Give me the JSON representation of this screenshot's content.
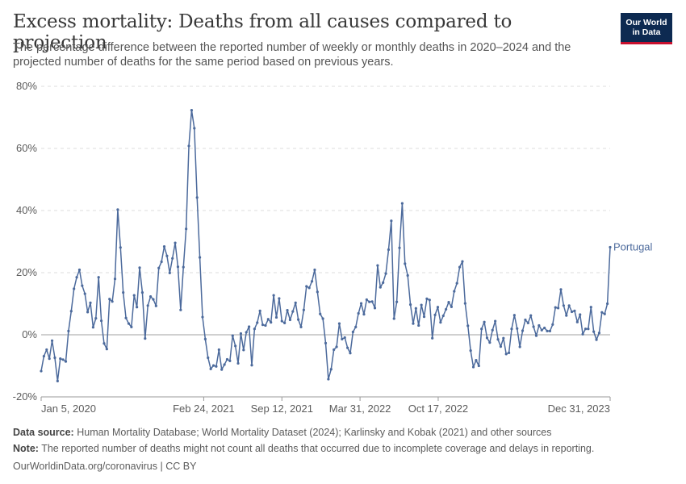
{
  "header": {
    "title": "Excess mortality: Deaths from all causes compared to projection",
    "subtitle": "The percentage difference between the reported number of weekly or monthly deaths in 2020–2024 and the projected number of deaths for the same period based on previous years.",
    "logo_line1": "Our World",
    "logo_line2": "in Data"
  },
  "footer": {
    "source_label": "Data source:",
    "source_text": "Human Mortality Database; World Mortality Dataset (2024); Karlinsky and Kobak (2021) and other sources",
    "note_label": "Note:",
    "note_text": "The reported number of deaths might not count all deaths that occurred due to incomplete coverage and delays in reporting.",
    "credit": "OurWorldinData.org/coronavirus | CC BY"
  },
  "colors": {
    "series": "#4c6a9c",
    "grid": "#dddddd",
    "zero_line": "#a0a0a0"
  },
  "chart_data": {
    "type": "line",
    "title": "Excess mortality: Deaths from all causes compared to projection",
    "xlabel": "",
    "ylabel": "",
    "ylim": [
      -20,
      80
    ],
    "y_ticks": [
      -20,
      0,
      20,
      40,
      60,
      80
    ],
    "y_tick_labels": [
      "-20%",
      "0%",
      "20%",
      "40%",
      "60%",
      "80%"
    ],
    "x_ticks": [
      "2020-01-05",
      "2021-02-24",
      "2021-09-12",
      "2022-03-31",
      "2022-10-17",
      "2023-12-31"
    ],
    "x_tick_labels": [
      "Jan 5, 2020",
      "Feb 24, 2021",
      "Sep 12, 2021",
      "Mar 31, 2022",
      "Oct 17, 2022",
      "Dec 31, 2023"
    ],
    "grid": "horizontal dashed",
    "series": [
      {
        "name": "Portugal",
        "x_start": "2020-01-05",
        "x_step_days": 7,
        "values": [
          -11.7,
          -6.9,
          -4.8,
          -7.7,
          -1.9,
          -7.4,
          -14.9,
          -7.7,
          -8.0,
          -8.6,
          1.2,
          7.6,
          14.8,
          18.5,
          20.9,
          15.8,
          13.2,
          7.3,
          10.3,
          2.4,
          5.3,
          18.5,
          4.5,
          -2.8,
          -4.6,
          11.5,
          10.7,
          18.0,
          40.3,
          28.1,
          13.6,
          5.4,
          3.6,
          2.5,
          12.7,
          8.9,
          21.6,
          13.6,
          -1.2,
          9.4,
          12.3,
          11.4,
          9.3,
          21.5,
          23.5,
          28.4,
          25.4,
          19.9,
          24.6,
          29.6,
          21.9,
          8.0,
          21.8,
          34.1,
          60.8,
          72.3,
          66.5,
          44.2,
          24.9,
          5.7,
          -1.4,
          -7.4,
          -11.0,
          -9.9,
          -10.2,
          -4.8,
          -11.2,
          -9.6,
          -7.9,
          -8.4,
          -0.3,
          -3.6,
          -9.2,
          0.4,
          -4.9,
          0.8,
          2.6,
          -9.8,
          1.9,
          3.9,
          7.7,
          3.2,
          3.0,
          5.0,
          4.0,
          12.7,
          5.6,
          11.7,
          4.4,
          3.8,
          7.9,
          4.8,
          7.5,
          10.3,
          4.9,
          2.5,
          8.0,
          15.6,
          15.1,
          17.2,
          20.9,
          13.8,
          6.7,
          5.2,
          -2.7,
          -14.3,
          -11.1,
          -4.8,
          -3.9,
          3.6,
          -1.4,
          -0.9,
          -4.2,
          -5.9,
          0.9,
          2.5,
          6.9,
          10.1,
          6.6,
          11.3,
          10.6,
          10.7,
          8.6,
          22.3,
          15.3,
          16.8,
          19.7,
          27.4,
          36.7,
          5.2,
          10.6,
          28.0,
          42.3,
          22.9,
          19.1,
          9.7,
          3.6,
          8.5,
          3.0,
          9.6,
          5.8,
          11.6,
          11.2,
          -1.1,
          6.4,
          8.9,
          4.0,
          6.1,
          8.2,
          10.5,
          9.0,
          14.0,
          16.6,
          21.8,
          23.6,
          10.1,
          2.9,
          -5.1,
          -10.4,
          -8.2,
          -10.0,
          1.9,
          4.1,
          -1.0,
          -2.5,
          1.5,
          4.4,
          -1.5,
          -3.8,
          -1.1,
          -6.2,
          -5.8,
          1.9,
          6.3,
          2.0,
          -3.9,
          1.3,
          4.8,
          3.8,
          6.2,
          2.6,
          -0.3,
          3.0,
          1.5,
          2.2,
          1.2,
          1.2,
          3.3,
          8.8,
          8.6,
          14.6,
          9.4,
          6.2,
          9.4,
          7.4,
          7.7,
          4.1,
          6.5,
          0.2,
          1.9,
          1.9,
          8.9,
          1.0,
          -1.6,
          0.6,
          7.2,
          6.7,
          10.0,
          28.2
        ]
      }
    ]
  }
}
